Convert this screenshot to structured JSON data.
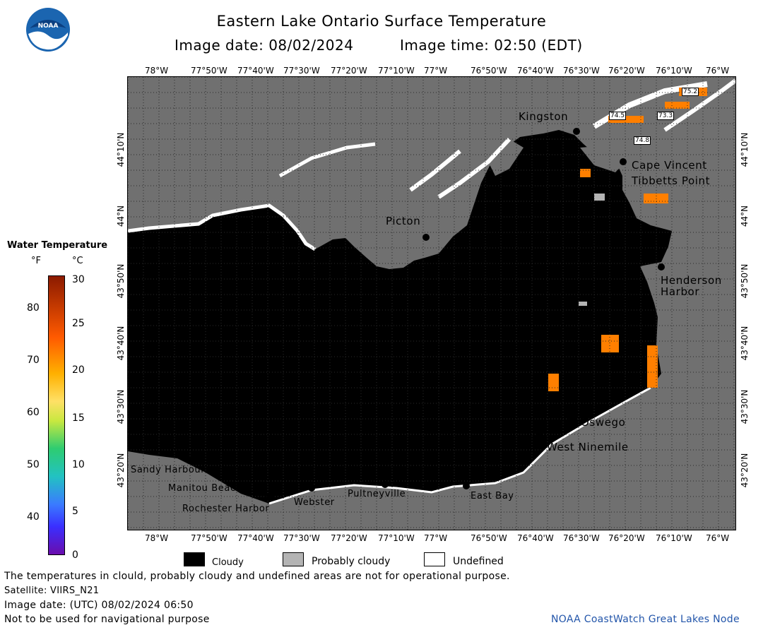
{
  "header": {
    "title": "Eastern Lake Ontario Surface Temperature",
    "date_label": "Image date: 08/02/2024",
    "time_label": "Image time: 02:50 (EDT)"
  },
  "logo": {
    "text": "NOAA"
  },
  "axes": {
    "lon_ticks": [
      "78°W",
      "77°50'W",
      "77°40'W",
      "77°30'W",
      "77°20'W",
      "77°10'W",
      "77°W",
      "76°50'W",
      "76°40'W",
      "76°30'W",
      "76°20'W",
      "76°10'W",
      "76°W"
    ],
    "lat_ticks": [
      "44°10'N",
      "44°N",
      "43°50'N",
      "43°40'N",
      "43°30'N",
      "43°20'N"
    ]
  },
  "legend": {
    "title": "Water Temperature",
    "unit_f": "°F",
    "unit_c": "°C",
    "f_ticks": [
      "80",
      "70",
      "60",
      "50",
      "40"
    ],
    "c_ticks": [
      "30",
      "25",
      "20",
      "15",
      "10",
      "5",
      "0"
    ],
    "colors": {
      "hot": "#8b1a00",
      "warm": "#ff7f00",
      "mid": "#ffd700",
      "cool": "#2ecc71",
      "cold": "#3a7bff",
      "coldest": "#6a0dad"
    }
  },
  "places": [
    {
      "name": "Kingston"
    },
    {
      "name": "Cape Vincent"
    },
    {
      "name": "Tibbetts Point"
    },
    {
      "name": "Picton"
    },
    {
      "name": "Henderson"
    },
    {
      "name": "Harbor"
    },
    {
      "name": "Oswego"
    },
    {
      "name": "West Ninemile"
    },
    {
      "name": "Sandy Harbour"
    },
    {
      "name": "Manitou Beach"
    },
    {
      "name": "Rochester Harbor"
    },
    {
      "name": "Webster"
    },
    {
      "name": "Pultneyville"
    },
    {
      "name": "East Bay"
    }
  ],
  "temp_values": [
    "75.2",
    "74.5",
    "73.3",
    "74.8"
  ],
  "map_colors": {
    "land": "#707070",
    "lake_cloud": "#000000",
    "warm_water": "#ff7f00",
    "undefined": "#ffffff",
    "probably_cloudy": "#b4b4b4"
  },
  "key": {
    "cloudy": "Cloudy",
    "probably_cloudy": "Probably cloudy",
    "undefined": "Undefined"
  },
  "footer": {
    "disclaimer": "The temperatures in clould, probably cloudy and undefined areas are not for operational purpose.",
    "satellite": "Satellite: VIIRS_N21",
    "utc": "Image date: (UTC) 08/02/2024  06:50",
    "nav": "Not to be used for navigational purpose",
    "credit": "NOAA CoastWatch Great Lakes Node"
  }
}
